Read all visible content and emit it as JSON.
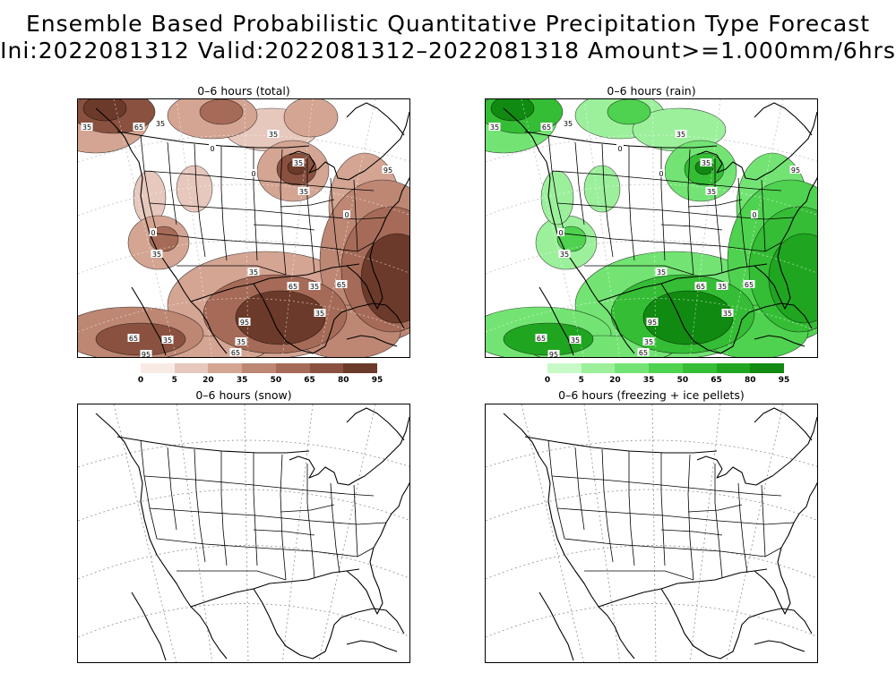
{
  "title": {
    "line1": "Ensemble Based Probabilistic Quantitative Precipitation Type Forecast",
    "line2": "Ini:2022081312 Valid:2022081312–2022081318 Amount>=1.000mm/6hrs"
  },
  "panels": [
    {
      "title": "0–6 hours (total)",
      "fill": "brown",
      "contour_labels": [
        "35",
        "65",
        "95",
        "0"
      ]
    },
    {
      "title": "0–6 hours (rain)",
      "fill": "green",
      "contour_labels": [
        "35",
        "65",
        "95",
        "0"
      ]
    },
    {
      "title": "0–6 hours (snow)",
      "fill": "none"
    },
    {
      "title": "0–6 hours (freezing + ice pellets)",
      "fill": "none"
    }
  ],
  "colorbars": {
    "total": {
      "labels": [
        "0",
        "5",
        "20",
        "35",
        "50",
        "65",
        "80",
        "95"
      ],
      "colors": [
        "#f8ebe6",
        "#e7c8bd",
        "#d4a593",
        "#bd8774",
        "#a66b58",
        "#8a5140",
        "#6c3a2a"
      ]
    },
    "rain": {
      "labels": [
        "0",
        "5",
        "20",
        "35",
        "50",
        "65",
        "80",
        "95"
      ],
      "colors": [
        "#c8fac8",
        "#9cf09c",
        "#73e473",
        "#4fd24f",
        "#35bd35",
        "#20a520",
        "#108a10"
      ]
    }
  }
}
